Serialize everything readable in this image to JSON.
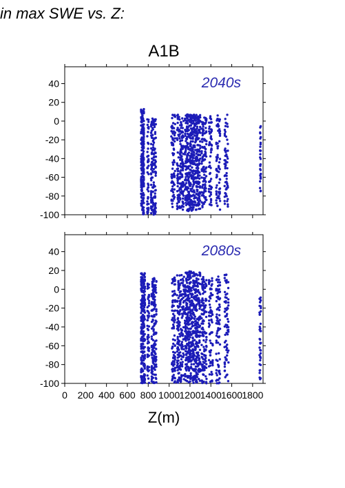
{
  "heading": "in max SWE vs. Z:",
  "chart_data": {
    "type": "scatter",
    "title": "A1B",
    "xlabel": "Z(m)",
    "ylabel": "",
    "xlim": [
      0,
      1900
    ],
    "ylim": [
      -100,
      58
    ],
    "xticks": [
      0,
      200,
      400,
      600,
      800,
      1000,
      1200,
      1400,
      1600,
      1800
    ],
    "yticks": [
      40,
      20,
      0,
      -20,
      -40,
      -60,
      -80,
      -100
    ],
    "marker_color": "#1c1cb8",
    "label_color": "#2a2ab0",
    "grid": false,
    "panels": [
      {
        "label": "2040s",
        "clusters": [
          {
            "x": [
              730,
              760
            ],
            "y": [
              -100,
              13
            ],
            "n": 220
          },
          {
            "x": [
              790,
              805
            ],
            "y": [
              -100,
              5
            ],
            "n": 50
          },
          {
            "x": [
              825,
              875
            ],
            "y": [
              -100,
              5
            ],
            "n": 160
          },
          {
            "x": [
              1020,
              1060
            ],
            "y": [
              -92,
              7
            ],
            "n": 80
          },
          {
            "x": [
              1075,
              1140
            ],
            "y": [
              -95,
              7
            ],
            "n": 160
          },
          {
            "x": [
              1150,
              1230
            ],
            "y": [
              -96,
              7
            ],
            "n": 280
          },
          {
            "x": [
              1230,
              1300
            ],
            "y": [
              -95,
              7
            ],
            "n": 230
          },
          {
            "x": [
              1310,
              1360
            ],
            "y": [
              -92,
              6
            ],
            "n": 110
          },
          {
            "x": [
              1380,
              1410
            ],
            "y": [
              -90,
              6
            ],
            "n": 60
          },
          {
            "x": [
              1450,
              1490
            ],
            "y": [
              -95,
              6
            ],
            "n": 70
          },
          {
            "x": [
              1530,
              1565
            ],
            "y": [
              -92,
              7
            ],
            "n": 60
          },
          {
            "x": [
              1870,
              1880
            ],
            "y": [
              -82,
              -4
            ],
            "n": 30
          }
        ]
      },
      {
        "label": "2080s",
        "clusters": [
          {
            "x": [
              730,
              770
            ],
            "y": [
              -100,
              17
            ],
            "n": 260
          },
          {
            "x": [
              790,
              810
            ],
            "y": [
              -100,
              8
            ],
            "n": 60
          },
          {
            "x": [
              830,
              880
            ],
            "y": [
              -100,
              12
            ],
            "n": 170
          },
          {
            "x": [
              1025,
              1060
            ],
            "y": [
              -100,
              13
            ],
            "n": 90
          },
          {
            "x": [
              1075,
              1145
            ],
            "y": [
              -100,
              16
            ],
            "n": 180
          },
          {
            "x": [
              1150,
              1230
            ],
            "y": [
              -100,
              19
            ],
            "n": 300
          },
          {
            "x": [
              1230,
              1300
            ],
            "y": [
              -100,
              18
            ],
            "n": 250
          },
          {
            "x": [
              1310,
              1360
            ],
            "y": [
              -100,
              14
            ],
            "n": 120
          },
          {
            "x": [
              1380,
              1420
            ],
            "y": [
              -100,
              12
            ],
            "n": 70
          },
          {
            "x": [
              1450,
              1490
            ],
            "y": [
              -100,
              14
            ],
            "n": 80
          },
          {
            "x": [
              1530,
              1570
            ],
            "y": [
              -100,
              17
            ],
            "n": 70
          },
          {
            "x": [
              1865,
              1880
            ],
            "y": [
              -100,
              -5
            ],
            "n": 40
          }
        ]
      }
    ]
  }
}
